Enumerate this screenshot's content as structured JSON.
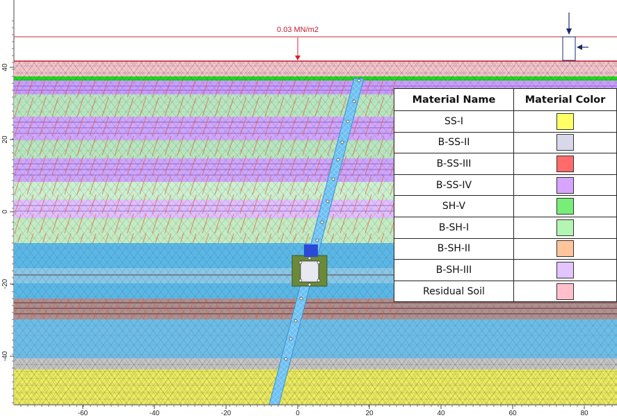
{
  "load": {
    "label": "0.03 MN/m2"
  },
  "axes": {
    "x_ticks": [
      "-60",
      "-40",
      "-20",
      "0",
      "20",
      "40",
      "60",
      "80"
    ],
    "y_ticks": [
      "40",
      "20",
      "0",
      "-20",
      "-40"
    ]
  },
  "legend": {
    "headers": {
      "name": "Material Name",
      "color": "Material Color"
    },
    "materials": [
      {
        "name": "SS-I",
        "color": "#ffff66"
      },
      {
        "name": "B-SS-II",
        "color": "#d8d8ea"
      },
      {
        "name": "B-SS-III",
        "color": "#ff6b6b"
      },
      {
        "name": "B-SS-IV",
        "color": "#d7a4ff"
      },
      {
        "name": "SH-V",
        "color": "#77ee77"
      },
      {
        "name": "B-SH-I",
        "color": "#b3f5b3"
      },
      {
        "name": "B-SH-II",
        "color": "#ffc59a"
      },
      {
        "name": "B-SH-III",
        "color": "#e2c4ff"
      },
      {
        "name": "Residual Soil",
        "color": "#ffc0cb"
      }
    ]
  },
  "colors": {
    "load_line": "#d42030",
    "tunnel": "#57b4ee",
    "support": "#5a7a3a"
  }
}
